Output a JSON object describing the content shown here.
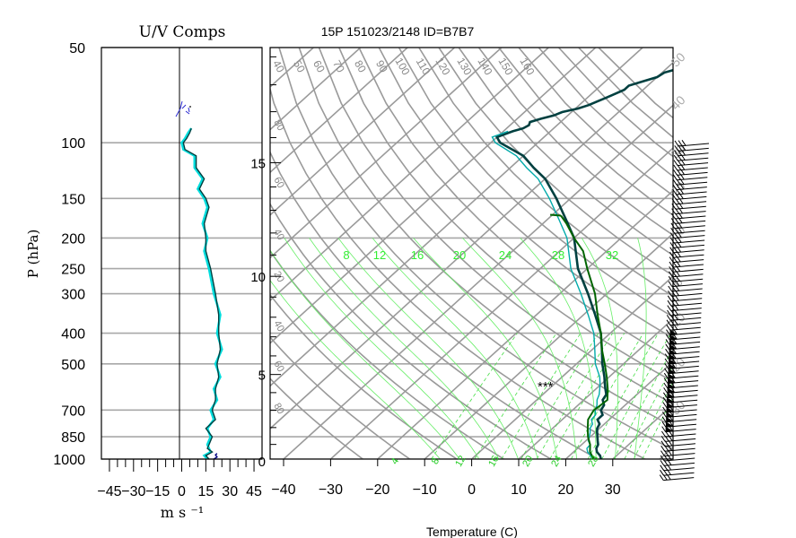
{
  "chart_data": [
    {
      "type": "line",
      "title": "U/V Comps",
      "ylabel": "P (hPa)",
      "xlabel": "m s ⁻¹",
      "y_scale": "log",
      "ylim": [
        1000,
        50
      ],
      "xlim": [
        -50,
        50
      ],
      "pressure_ticks": [
        50,
        100,
        150,
        200,
        250,
        300,
        400,
        500,
        700,
        850,
        1000
      ],
      "pressure_tick_labels": [
        "50",
        "100",
        "150",
        "200",
        "250",
        "300",
        "400",
        "500",
        "700",
        "850",
        "1000"
      ],
      "x_ticks": [
        -45,
        -30,
        -15,
        0,
        15,
        30,
        45
      ],
      "x_tick_labels": [
        "−45",
        "−30",
        "−15",
        "0",
        "15",
        "30",
        "45"
      ],
      "series": [
        {
          "color": "#00dddd",
          "p": [
            1000,
            975,
            950,
            925,
            900,
            850,
            800,
            750,
            700,
            650,
            600,
            550,
            500,
            450,
            400,
            350,
            300,
            250,
            220,
            200,
            180,
            160,
            150,
            140,
            130,
            120,
            110,
            105,
            100,
            97,
            93,
            90
          ],
          "values": [
            16,
            14,
            18,
            17,
            16,
            18,
            16,
            20,
            18,
            22,
            20,
            24,
            21,
            25,
            22,
            24,
            20,
            17,
            14,
            16,
            13,
            16,
            14,
            10,
            13,
            8,
            8,
            1,
            0,
            2,
            4,
            6
          ]
        },
        {
          "color": "#004040",
          "p": [
            1000,
            975,
            950,
            925,
            900,
            850,
            800,
            750,
            700,
            650,
            600,
            550,
            500,
            450,
            400,
            350,
            300,
            250,
            220,
            200,
            180,
            160,
            150,
            140,
            130,
            120,
            110,
            105,
            100,
            97,
            93,
            90
          ],
          "values": [
            17,
            15,
            19,
            16,
            17,
            19,
            15,
            21,
            19,
            21,
            21,
            23,
            22,
            24,
            23,
            23,
            21,
            18,
            15,
            15,
            14,
            17,
            15,
            11,
            14,
            9,
            9,
            2,
            1,
            3,
            5,
            6
          ]
        },
        {
          "color": "#000080",
          "p": [
            1000,
            985,
            970,
            960
          ],
          "values": [
            20,
            22,
            21,
            22
          ]
        }
      ]
    },
    {
      "type": "line",
      "title": "15P 151023/2148 ID=B7B7",
      "xlabel": "Temperature (C)",
      "xlim": [
        -40,
        40
      ],
      "x_ticks": [
        -40,
        -30,
        -20,
        -10,
        0,
        10,
        20,
        30
      ],
      "x_tick_labels": [
        "−40",
        "−30",
        "−20",
        "−10",
        "0",
        "10",
        "20",
        "30"
      ],
      "height_ticks": [
        0,
        5,
        10,
        15
      ],
      "height_tick_labels": [
        "0",
        "5",
        "10",
        "15"
      ],
      "mixing_ratio_labels": [
        "8",
        "12",
        "16",
        "20",
        "24",
        "28",
        "32"
      ],
      "top_labels": [
        "40",
        "50",
        "60",
        "70",
        "80",
        "90",
        "100",
        "110",
        "120",
        "130",
        "140",
        "150",
        "160"
      ],
      "isotherm_labels": [
        "50",
        "40",
        "30",
        "20",
        "10",
        "0",
        "10",
        "20",
        "30"
      ],
      "side_labels": [
        "80",
        "60",
        "40",
        "20",
        "40",
        "60",
        "80"
      ],
      "bottom_labels": [
        "4",
        "8",
        "12",
        "16",
        "20",
        "24",
        "28"
      ],
      "parcel_marker": "***",
      "profiles": {
        "temperature": {
          "color": "#004040",
          "points": [
            [
              1000,
              27.5
            ],
            [
              975,
              26.5
            ],
            [
              950,
              25.0
            ],
            [
              925,
              24.0
            ],
            [
              900,
              23.5
            ],
            [
              875,
              22.5
            ],
            [
              850,
              21.5
            ],
            [
              825,
              20.5
            ],
            [
              800,
              19.5
            ],
            [
              775,
              19.0
            ],
            [
              750,
              17.5
            ],
            [
              725,
              17.5
            ],
            [
              700,
              16.0
            ],
            [
              675,
              15.5
            ],
            [
              650,
              14.0
            ],
            [
              625,
              13.5
            ],
            [
              600,
              12.0
            ],
            [
              575,
              10.5
            ],
            [
              550,
              9.0
            ],
            [
              500,
              5.5
            ],
            [
              450,
              2.0
            ],
            [
              400,
              -2.0
            ],
            [
              350,
              -7.5
            ],
            [
              300,
              -14.0
            ],
            [
              250,
              -22.0
            ],
            [
              200,
              -30.0
            ],
            [
              175,
              -36.0
            ],
            [
              150,
              -43.0
            ],
            [
              130,
              -50.0
            ],
            [
              120,
              -55.0
            ],
            [
              110,
              -60.0
            ],
            [
              100,
              -68.0
            ],
            [
              98,
              -69.0
            ],
            [
              96,
              -70.0
            ],
            [
              94,
              -69.0
            ],
            [
              92,
              -68.0
            ],
            [
              90,
              -66.5
            ],
            [
              88,
              -66.0
            ],
            [
              86,
              -66.5
            ],
            [
              84,
              -65.0
            ],
            [
              82,
              -63.0
            ],
            [
              80,
              -62.0
            ],
            [
              78,
              -59.5
            ],
            [
              76,
              -58.0
            ],
            [
              74,
              -57.0
            ],
            [
              72,
              -56.0
            ],
            [
              70,
              -55.0
            ],
            [
              68,
              -54.0
            ],
            [
              66,
              -54.0
            ],
            [
              64,
              -52.0
            ],
            [
              62,
              -50.0
            ],
            [
              60,
              -49.5
            ],
            [
              58,
              -47.0
            ],
            [
              56,
              -46.5
            ]
          ]
        },
        "dewpoint": {
          "color": "#00aaaa",
          "points": [
            [
              1000,
              25.5
            ],
            [
              975,
              24.5
            ],
            [
              950,
              23.0
            ],
            [
              925,
              22.0
            ],
            [
              900,
              21.8
            ],
            [
              875,
              20.5
            ],
            [
              850,
              19.8
            ],
            [
              825,
              19.0
            ],
            [
              800,
              18.0
            ],
            [
              775,
              17.5
            ],
            [
              750,
              16.2
            ],
            [
              725,
              16.0
            ],
            [
              700,
              14.8
            ],
            [
              675,
              14.0
            ],
            [
              650,
              12.8
            ],
            [
              625,
              12.0
            ],
            [
              600,
              10.8
            ],
            [
              575,
              9.5
            ],
            [
              550,
              8.0
            ],
            [
              500,
              4.0
            ],
            [
              450,
              0.5
            ],
            [
              400,
              -3.5
            ],
            [
              350,
              -9.0
            ],
            [
              300,
              -15.5
            ],
            [
              250,
              -23.5
            ],
            [
              200,
              -31.5
            ],
            [
              175,
              -37.5
            ],
            [
              150,
              -44.5
            ],
            [
              130,
              -51.5
            ],
            [
              120,
              -56.5
            ],
            [
              110,
              -61.5
            ],
            [
              100,
              -69.0
            ],
            [
              98,
              -70.0
            ],
            [
              96,
              -71.0
            ],
            [
              94,
              -70.0
            ],
            [
              92,
              -69.0
            ]
          ]
        },
        "parcel": {
          "color": "#006400",
          "points": [
            [
              1000,
              26.0
            ],
            [
              950,
              23.5
            ],
            [
              900,
              21.8
            ],
            [
              850,
              19.5
            ],
            [
              800,
              17.5
            ],
            [
              750,
              15.5
            ],
            [
              700,
              14.5
            ],
            [
              675,
              14.8
            ],
            [
              650,
              15.0
            ],
            [
              600,
              12.5
            ],
            [
              550,
              9.5
            ],
            [
              500,
              6.0
            ],
            [
              450,
              2.0
            ],
            [
              400,
              -2.0
            ],
            [
              350,
              -7.0
            ],
            [
              300,
              -12.5
            ],
            [
              250,
              -20.0
            ],
            [
              220,
              -25.0
            ],
            [
              200,
              -30.0
            ],
            [
              180,
              -35.0
            ],
            [
              170,
              -38.0
            ]
          ]
        }
      }
    }
  ]
}
